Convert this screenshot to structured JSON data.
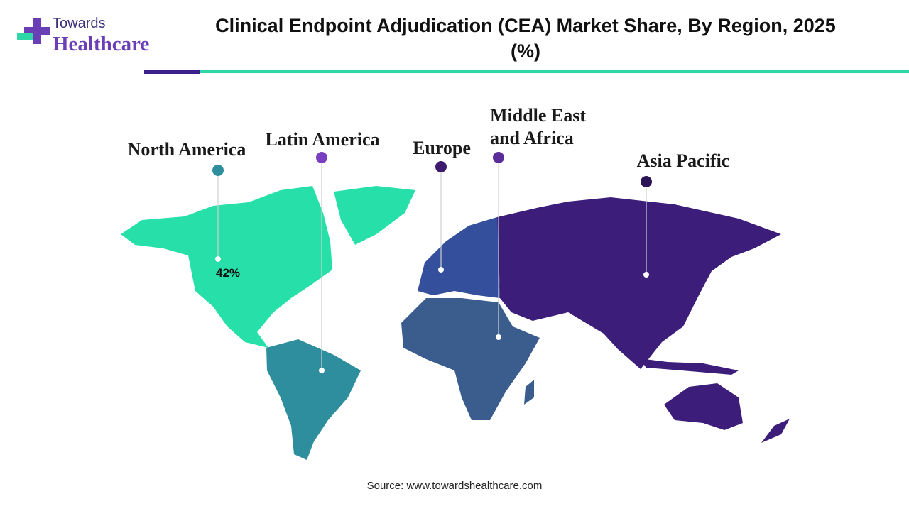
{
  "header": {
    "logo_top": "Towards",
    "logo_bottom": "Healthcare",
    "title": "Clinical Endpoint Adjudication (CEA) Market Share, By Region, 2025 (%)"
  },
  "regions": [
    {
      "name": "North America",
      "color": "#2e8e9e",
      "share_label": "42%"
    },
    {
      "name": "Latin America",
      "color": "#7a3fc0"
    },
    {
      "name": "Europe",
      "color": "#3d1a6e"
    },
    {
      "name": "Middle East and Africa",
      "color": "#5b2d9a"
    },
    {
      "name": "Asia Pacific",
      "color": "#2d1457"
    }
  ],
  "source": "Source: www.towardshealthcare.com"
}
